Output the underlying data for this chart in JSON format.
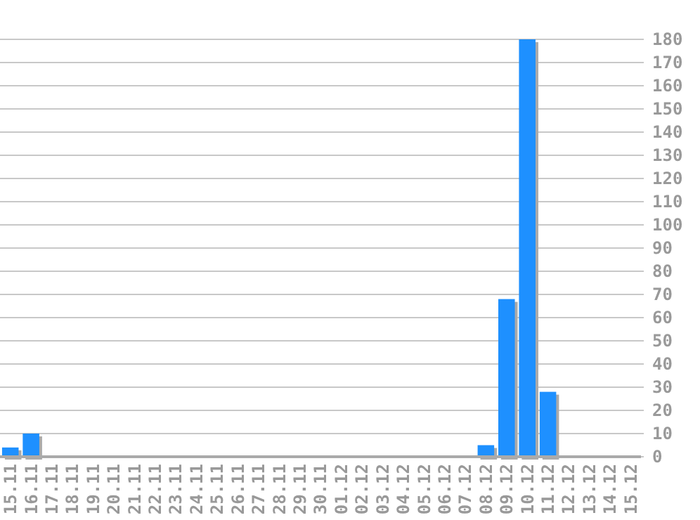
{
  "chart_data": {
    "type": "bar",
    "categories": [
      "15.11",
      "16.11",
      "17.11",
      "18.11",
      "19.11",
      "20.11",
      "21.11",
      "22.11",
      "23.11",
      "24.11",
      "25.11",
      "26.11",
      "27.11",
      "28.11",
      "29.11",
      "30.11",
      "01.12",
      "02.12",
      "03.12",
      "04.12",
      "05.12",
      "06.12",
      "07.12",
      "08.12",
      "09.12",
      "10.12",
      "11.12",
      "12.12",
      "13.12",
      "14.12",
      "15.12"
    ],
    "values": [
      4,
      10,
      0,
      0,
      0,
      0,
      0,
      0,
      0,
      0,
      0,
      0,
      0,
      0,
      0,
      0,
      0,
      0,
      0,
      0,
      0,
      0,
      0,
      5,
      68,
      180,
      28,
      0,
      0,
      0,
      0
    ],
    "color": "#1e90ff",
    "ylim": [
      0,
      180
    ],
    "yticks": [
      0,
      10,
      20,
      30,
      40,
      50,
      60,
      70,
      80,
      90,
      100,
      110,
      120,
      130,
      140,
      150,
      160,
      170,
      180
    ],
    "grid": "y"
  }
}
